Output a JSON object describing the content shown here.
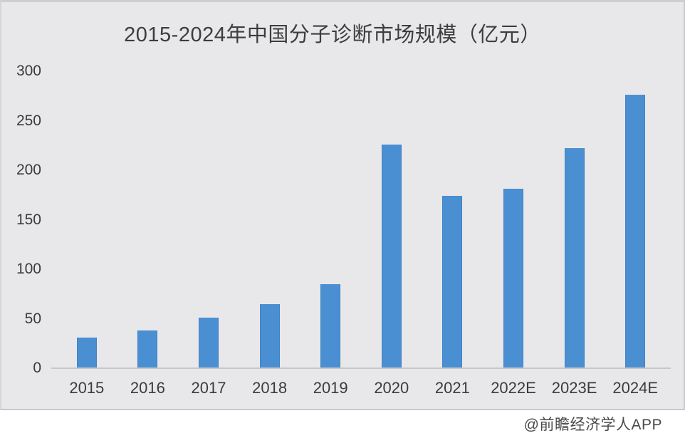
{
  "watermark": "@前瞻经济学人APP",
  "colors": {
    "chart_background": "#e8e8ea",
    "bar": "#4b8fd3",
    "title_text": "#3d3d3f",
    "axis_text": "#3b3b3d",
    "axis_line": "#c7c7cb",
    "watermark_text": "#4a4a4c"
  },
  "chart_data": {
    "type": "bar",
    "title": "2015-2024年中国分子诊断市场规模（亿元）",
    "categories": [
      "2015",
      "2016",
      "2017",
      "2018",
      "2019",
      "2020",
      "2021",
      "2022E",
      "2023E",
      "2024E"
    ],
    "values": [
      31,
      38,
      51,
      65,
      85,
      226,
      174,
      181,
      222,
      276
    ],
    "xlabel": "",
    "ylabel": "",
    "ylim": [
      0,
      300
    ],
    "yticks": [
      300,
      250,
      200,
      150,
      100,
      50,
      0
    ],
    "grid": false,
    "legend": "none",
    "source_watermark": "@前瞻经济学人APP"
  }
}
